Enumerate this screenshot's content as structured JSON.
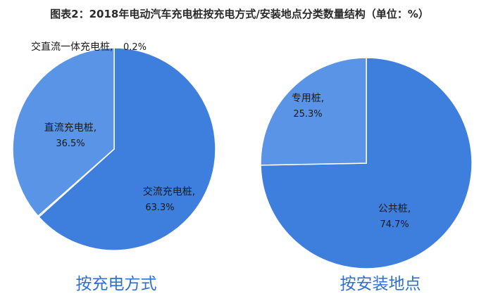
{
  "title": "图表2：2018年电动汽车充电桩按充电方式/安装地点分类数量结构（单位：%）",
  "colors": {
    "dark": "#3e7fde",
    "light": "#5a94e6",
    "separator": "#ffffff",
    "caption": "#2f6fd6"
  },
  "chart_data": [
    {
      "type": "pie",
      "caption": "按充电方式",
      "slices": [
        {
          "label": "交流充电桩,",
          "value": 63.3,
          "display": "63.3%"
        },
        {
          "label": "交直流一体充电桩,",
          "value": 0.2,
          "display": "0.2%"
        },
        {
          "label": "直流充电桩,",
          "value": 36.5,
          "display": "36.5%"
        }
      ]
    },
    {
      "type": "pie",
      "caption": "按安装地点",
      "slices": [
        {
          "label": "公共桩,",
          "value": 74.7,
          "display": "74.7%"
        },
        {
          "label": "专用桩,",
          "value": 25.3,
          "display": "25.3%"
        }
      ]
    }
  ]
}
